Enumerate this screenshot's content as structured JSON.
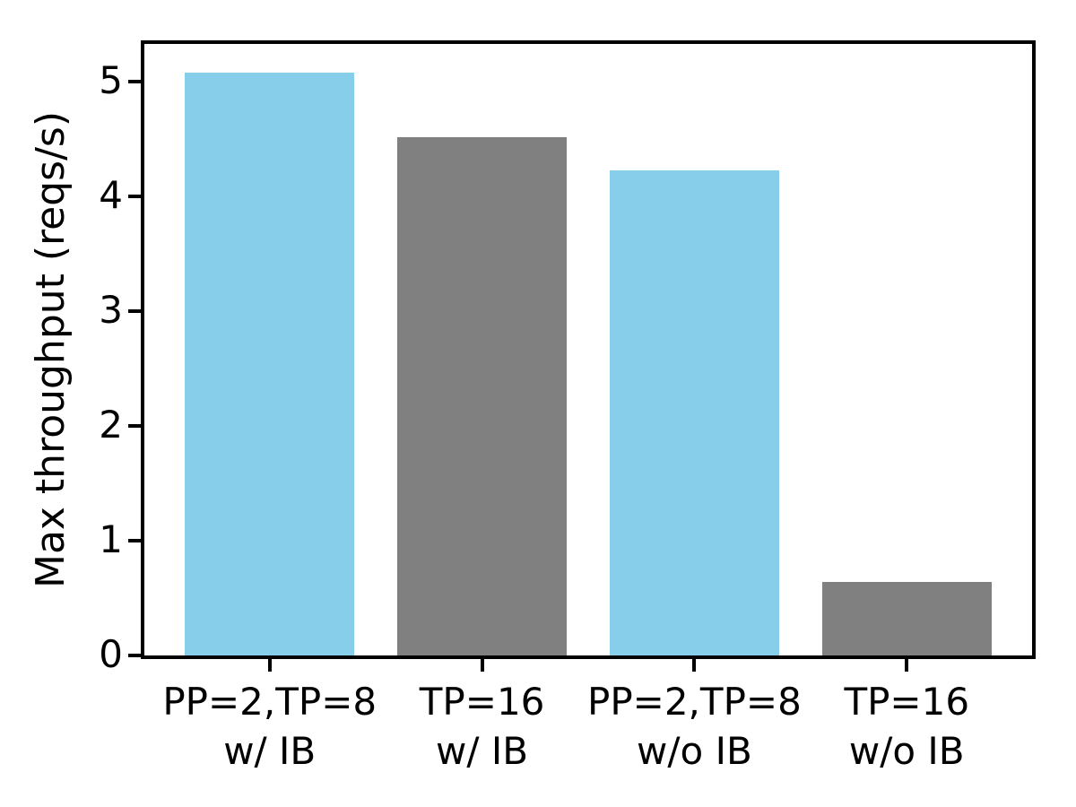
{
  "chart_data": {
    "type": "bar",
    "title": "",
    "xlabel": "",
    "ylabel": "Max throughput (reqs/s)",
    "categories": [
      "PP=2,TP=8\nw/ IB",
      "TP=16\nw/ IB",
      "PP=2,TP=8\nw/o IB",
      "TP=16\nw/o IB"
    ],
    "values": [
      5.08,
      4.52,
      4.23,
      0.64
    ],
    "bar_colors": [
      "#87CEEB",
      "#808080",
      "#87CEEB",
      "#808080"
    ],
    "yticks": [
      0,
      1,
      2,
      3,
      4,
      5
    ],
    "ylim": [
      0,
      5.33
    ],
    "xlim": [
      -0.59,
      3.59
    ],
    "bar_width": 0.8,
    "grid": false,
    "legend_position": "none"
  },
  "colors": {
    "skyblue": "#87CEEB",
    "gray": "#808080",
    "axis": "#000000",
    "background": "#FFFFFF"
  }
}
